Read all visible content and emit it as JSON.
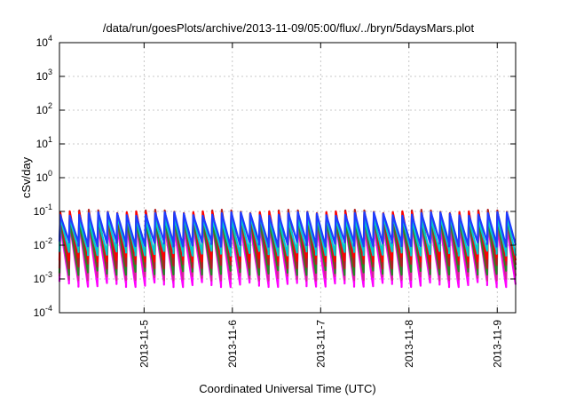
{
  "chart_data": {
    "type": "line",
    "title": "/data/run/goesPlots/archive/2013-11-09/05:00/flux/../bryn/5daysMars.plot",
    "xlabel": "Coordinated Universal Time (UTC)",
    "ylabel": "cSv/day",
    "yscale": "log",
    "ylim": [
      0.0001,
      10000
    ],
    "xlim": [
      "2013-11-04 01:00",
      "2013-11-09 05:00"
    ],
    "x_ticks": [
      "2013-11-5",
      "2013-11-6",
      "2013-11-7",
      "2013-11-8",
      "2013-11-9"
    ],
    "y_ticks": [
      {
        "base": "10",
        "exp": "-4"
      },
      {
        "base": "10",
        "exp": "-3"
      },
      {
        "base": "10",
        "exp": "-2"
      },
      {
        "base": "10",
        "exp": "-1"
      },
      {
        "base": "10",
        "exp": "0"
      },
      {
        "base": "10",
        "exp": "1"
      },
      {
        "base": "10",
        "exp": "2"
      },
      {
        "base": "10",
        "exp": "3"
      },
      {
        "base": "10",
        "exp": "4"
      }
    ],
    "grid": true,
    "legend": "none",
    "pattern": {
      "cycles": 48,
      "shape": "sawtooth"
    },
    "series": [
      {
        "color": "#ff00ff",
        "peak": 0.04,
        "trough": 0.0007
      },
      {
        "color": "#d4239a",
        "peak": 0.05,
        "trough": 0.0011
      },
      {
        "color": "#228b22",
        "peak": 0.06,
        "trough": 0.0016
      },
      {
        "color": "#b02020",
        "peak": 0.1,
        "trough": 0.0025
      },
      {
        "color": "#ff0000",
        "peak": 0.09,
        "trough": 0.004
      },
      {
        "color": "#00cccc",
        "peak": 0.065,
        "trough": 0.006
      },
      {
        "color": "#1e3cff",
        "peak": 0.085,
        "trough": 0.011
      }
    ]
  }
}
